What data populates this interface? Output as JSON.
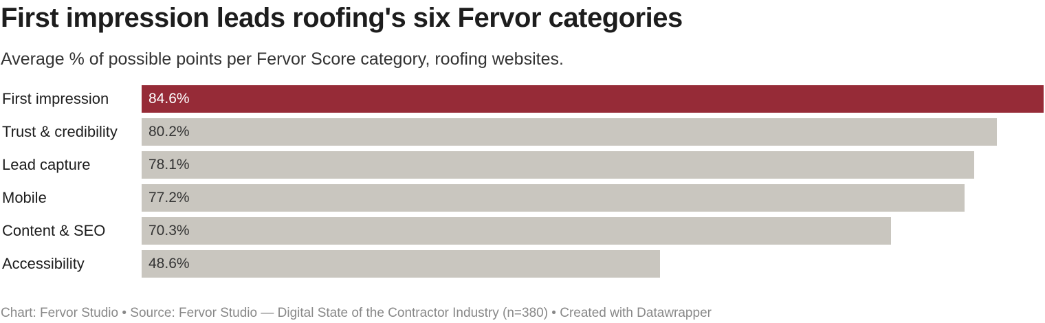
{
  "chart_data": {
    "type": "bar",
    "orientation": "horizontal",
    "title": "First impression leads roofing's six Fervor categories",
    "subtitle": "Average % of possible points per Fervor Score category, roofing websites.",
    "categories": [
      "First impression",
      "Trust & credibility",
      "Lead capture",
      "Mobile",
      "Content & SEO",
      "Accessibility"
    ],
    "values": [
      84.6,
      80.2,
      78.1,
      77.2,
      70.3,
      48.6
    ],
    "value_labels": [
      "84.6%",
      "80.2%",
      "78.1%",
      "77.2%",
      "70.3%",
      "48.6%"
    ],
    "xlim": [
      0,
      84.6
    ],
    "grid": false,
    "colors": {
      "highlight": "#962b37",
      "default": "#c9c6bf",
      "highlight_text": "#ffffff",
      "default_text": "#333333"
    }
  },
  "footer": "Chart: Fervor Studio • Source: Fervor Studio — Digital State of the Contractor Industry (n=380) • Created with Datawrapper"
}
